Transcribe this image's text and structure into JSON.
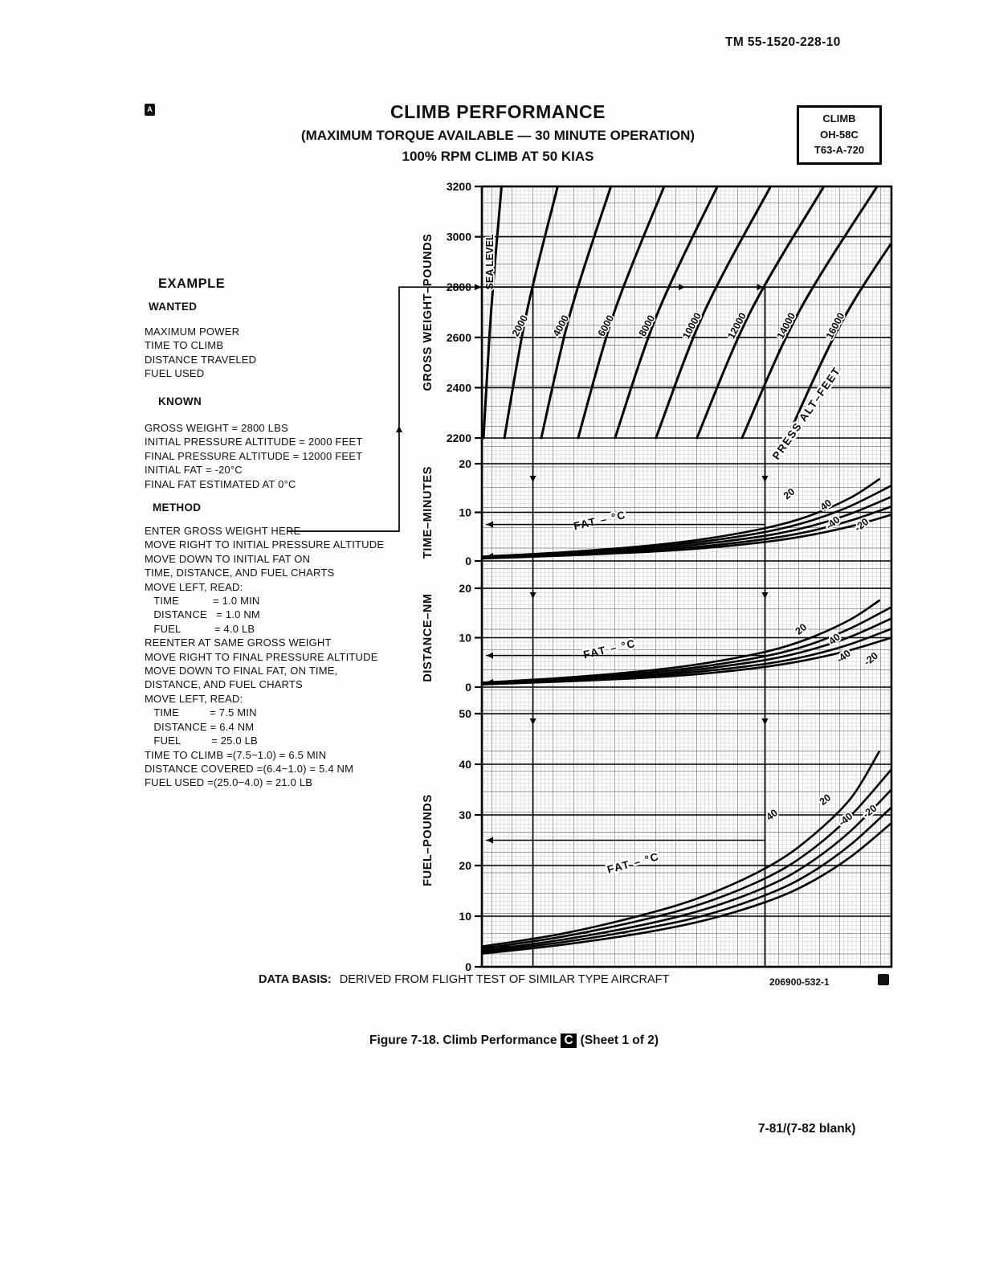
{
  "page": {
    "tm_number": "TM 55-1520-228-10",
    "title": "CLIMB PERFORMANCE",
    "subtitle1": "(MAXIMUM TORQUE AVAILABLE — 30 MINUTE OPERATION)",
    "subtitle2": "100% RPM CLIMB AT 50 KIAS",
    "info_box": [
      "CLIMB",
      "OH-58C",
      "T63-A-720"
    ],
    "data_basis_label": "DATA BASIS:",
    "data_basis_text": "DERIVED FROM FLIGHT TEST OF SIMILAR TYPE AIRCRAFT",
    "part_number": "206900-532-1",
    "figure_caption_pre": "Figure 7-18.  Climb Performance",
    "figure_caption_badge": "C",
    "figure_caption_post": "(Sheet 1 of 2)",
    "page_number": "7-81/(7-82 blank)"
  },
  "example": {
    "heading": "EXAMPLE",
    "wanted_heading": "WANTED",
    "wanted_items": [
      "MAXIMUM POWER",
      "TIME TO CLIMB",
      "DISTANCE TRAVELED",
      "FUEL USED"
    ],
    "known_heading": "KNOWN",
    "known_items": [
      "GROSS WEIGHT = 2800 LBS",
      "INITIAL PRESSURE ALTITUDE = 2000 FEET",
      "FINAL PRESSURE ALTITUDE = 12000 FEET",
      "INITIAL FAT = -20°C",
      "FINAL FAT ESTIMATED AT 0°C"
    ],
    "method_heading": "METHOD",
    "method_lines": [
      "ENTER GROSS WEIGHT HERE",
      "MOVE RIGHT TO INITIAL PRESSURE ALTITUDE",
      "MOVE DOWN TO INITIAL FAT ON",
      "TIME, DISTANCE, AND FUEL CHARTS",
      "MOVE LEFT, READ:",
      "   TIME           = 1.0 MIN",
      "   DISTANCE   = 1.0 NM",
      "   FUEL           = 4.0 LB",
      "REENTER AT SAME GROSS WEIGHT",
      "MOVE RIGHT TO FINAL PRESSURE ALTITUDE",
      "MOVE DOWN TO FINAL FAT, ON TIME,",
      "DISTANCE, AND FUEL CHARTS",
      "MOVE LEFT, READ:",
      "   TIME          = 7.5 MIN",
      "   DISTANCE = 6.4 NM",
      "   FUEL          = 25.0 LB",
      "TIME TO CLIMB =(7.5−1.0) = 6.5 MIN",
      "DISTANCE COVERED =(6.4−1.0) = 5.4 NM",
      "FUEL USED =(25.0−4.0) = 21.0 LB"
    ]
  },
  "chart_data": {
    "type": "line",
    "title": "CLIMB PERFORMANCE (MAXIMUM TORQUE AVAILABLE — 30 MINUTE OPERATION) 100% RPM CLIMB AT 50 KIAS",
    "x_axis": "shared unlabeled nomograph reference axis (x given as fraction 0–1 of chart width)",
    "grid": "fine graph-paper grid, on",
    "panels": [
      {
        "id": "gross_weight",
        "ylabel": "GROSS WEIGHT–POUNDS",
        "ylim": [
          2200,
          3200
        ],
        "yticks": [
          3200,
          3000,
          2800,
          2600,
          2400,
          2200
        ],
        "family_label": "PRESS ALT–FEET",
        "family_label_at": {
          "f": 0.8,
          "v": 2290,
          "rot": -55
        },
        "series": [
          {
            "name": "SEA LEVEL",
            "points": [
              [
                0.004,
                2200
              ],
              [
                0.0225,
                2700
              ],
              [
                0.048,
                3200
              ]
            ],
            "label_at": [
              0.027,
              2900,
              -90
            ]
          },
          {
            "name": "2000",
            "points": [
              [
                0.055,
                2200
              ],
              [
                0.1096,
                2700
              ],
              [
                0.185,
                3200
              ]
            ],
            "label_at": [
              0.1,
              2640,
              -62
            ]
          },
          {
            "name": "4000",
            "points": [
              [
                0.145,
                2200
              ],
              [
                0.2164,
                2700
              ],
              [
                0.315,
                3200
              ]
            ],
            "label_at": [
              0.2,
              2640,
              -62
            ]
          },
          {
            "name": "6000",
            "points": [
              [
                0.235,
                2200
              ],
              [
                0.3232,
                2700
              ],
              [
                0.445,
                3200
              ]
            ],
            "label_at": [
              0.31,
              2640,
              -62
            ]
          },
          {
            "name": "8000",
            "points": [
              [
                0.325,
                2200
              ],
              [
                0.43,
                2700
              ],
              [
                0.575,
                3200
              ]
            ],
            "label_at": [
              0.41,
              2640,
              -62
            ]
          },
          {
            "name": "10000",
            "points": [
              [
                0.425,
                2200
              ],
              [
                0.5426,
                2700
              ],
              [
                0.705,
                3200
              ]
            ],
            "label_at": [
              0.52,
              2640,
              -62
            ]
          },
          {
            "name": "12000",
            "points": [
              [
                0.525,
                2200
              ],
              [
                0.6552,
                2700
              ],
              [
                0.835,
                3200
              ]
            ],
            "label_at": [
              0.63,
              2640,
              -62
            ]
          },
          {
            "name": "14000",
            "points": [
              [
                0.635,
                2200
              ],
              [
                0.7736,
                2700
              ],
              [
                0.965,
                3200
              ]
            ],
            "label_at": [
              0.75,
              2640,
              -62
            ]
          },
          {
            "name": "16000",
            "points": [
              [
                0.745,
                2200
              ],
              [
                0.892,
                2700
              ],
              [
                1.095,
                3200
              ]
            ],
            "label_at": [
              0.87,
              2640,
              -62
            ]
          }
        ]
      },
      {
        "id": "time",
        "ylabel": "TIME–MINUTES",
        "ylim": [
          0,
          20
        ],
        "yticks": [
          20,
          10,
          0
        ],
        "family_label": "FAT – °C",
        "family_label_at": {
          "f": 0.29,
          "v": 7.6,
          "rot": -13
        },
        "curve_labels": [
          {
            "text": "20",
            "f": 0.755,
            "v": 13.3,
            "rot": -38
          },
          {
            "text": "40",
            "f": 0.845,
            "v": 11.0,
            "rot": -38
          },
          {
            "text": "-40",
            "f": 0.862,
            "v": 7.3,
            "rot": -38
          },
          {
            "text": "-20",
            "f": 0.932,
            "v": 6.9,
            "rot": -38
          }
        ],
        "series": [
          {
            "name": "40",
            "points": [
              [
                0,
                0.9
              ],
              [
                0.2,
                1.8
              ],
              [
                0.4,
                3.1
              ],
              [
                0.55,
                4.6
              ],
              [
                0.7,
                6.9
              ],
              [
                0.8,
                9.3
              ],
              [
                0.9,
                13.0
              ],
              [
                0.97,
                16.8
              ]
            ]
          },
          {
            "name": "20",
            "points": [
              [
                0,
                0.8
              ],
              [
                0.2,
                1.6
              ],
              [
                0.4,
                2.8
              ],
              [
                0.55,
                4.1
              ],
              [
                0.7,
                6.1
              ],
              [
                0.8,
                8.2
              ],
              [
                0.9,
                11.3
              ],
              [
                1.0,
                15.5
              ]
            ]
          },
          {
            "name": "0",
            "points": [
              [
                0,
                0.7
              ],
              [
                0.2,
                1.4
              ],
              [
                0.4,
                2.4
              ],
              [
                0.55,
                3.6
              ],
              [
                0.7,
                5.3
              ],
              [
                0.8,
                7.1
              ],
              [
                0.9,
                9.7
              ],
              [
                1.0,
                13.2
              ]
            ]
          },
          {
            "name": "-20",
            "points": [
              [
                0,
                0.6
              ],
              [
                0.2,
                1.25
              ],
              [
                0.4,
                2.1
              ],
              [
                0.55,
                3.1
              ],
              [
                0.7,
                4.6
              ],
              [
                0.8,
                6.1
              ],
              [
                0.9,
                8.3
              ],
              [
                1.0,
                11.2
              ]
            ]
          },
          {
            "name": "-40",
            "points": [
              [
                0,
                0.5
              ],
              [
                0.2,
                1.1
              ],
              [
                0.4,
                1.85
              ],
              [
                0.55,
                2.7
              ],
              [
                0.7,
                4.0
              ],
              [
                0.8,
                5.3
              ],
              [
                0.9,
                7.1
              ],
              [
                1.0,
                9.5
              ]
            ]
          }
        ]
      },
      {
        "id": "distance",
        "ylabel": "DISTANCE–NM",
        "ylim": [
          0,
          20
        ],
        "yticks": [
          20,
          10,
          0
        ],
        "family_label": "FAT – °C",
        "family_label_at": {
          "f": 0.314,
          "v": 7.0,
          "rot": -13
        },
        "curve_labels": [
          {
            "text": "20",
            "f": 0.784,
            "v": 11.2,
            "rot": -38
          },
          {
            "text": "40",
            "f": 0.866,
            "v": 9.2,
            "rot": -38
          },
          {
            "text": "-40",
            "f": 0.888,
            "v": 5.7,
            "rot": -38
          },
          {
            "text": "-20",
            "f": 0.955,
            "v": 5.2,
            "rot": -38
          }
        ],
        "series": [
          {
            "name": "40",
            "points": [
              [
                0,
                0.9
              ],
              [
                0.2,
                1.9
              ],
              [
                0.4,
                3.3
              ],
              [
                0.55,
                4.9
              ],
              [
                0.7,
                7.3
              ],
              [
                0.8,
                9.9
              ],
              [
                0.9,
                13.7
              ],
              [
                0.97,
                17.5
              ]
            ]
          },
          {
            "name": "20",
            "points": [
              [
                0,
                0.8
              ],
              [
                0.2,
                1.7
              ],
              [
                0.4,
                2.9
              ],
              [
                0.55,
                4.3
              ],
              [
                0.7,
                6.4
              ],
              [
                0.8,
                8.6
              ],
              [
                0.9,
                11.9
              ],
              [
                1.0,
                16.2
              ]
            ]
          },
          {
            "name": "0",
            "points": [
              [
                0,
                0.7
              ],
              [
                0.2,
                1.5
              ],
              [
                0.4,
                2.5
              ],
              [
                0.55,
                3.8
              ],
              [
                0.7,
                5.6
              ],
              [
                0.8,
                7.5
              ],
              [
                0.9,
                10.2
              ],
              [
                1.0,
                13.9
              ]
            ]
          },
          {
            "name": "-20",
            "points": [
              [
                0,
                0.6
              ],
              [
                0.2,
                1.3
              ],
              [
                0.4,
                2.2
              ],
              [
                0.55,
                3.3
              ],
              [
                0.7,
                4.8
              ],
              [
                0.8,
                6.4
              ],
              [
                0.9,
                8.7
              ],
              [
                1.0,
                11.8
              ]
            ]
          },
          {
            "name": "-40",
            "points": [
              [
                0,
                0.55
              ],
              [
                0.2,
                1.15
              ],
              [
                0.4,
                1.9
              ],
              [
                0.55,
                2.8
              ],
              [
                0.7,
                4.2
              ],
              [
                0.8,
                5.6
              ],
              [
                0.9,
                7.5
              ],
              [
                1.0,
                10.0
              ]
            ]
          }
        ]
      },
      {
        "id": "fuel",
        "ylabel": "FUEL–POUNDS",
        "ylim": [
          0,
          50
        ],
        "yticks": [
          50,
          40,
          30,
          20,
          10,
          0
        ],
        "family_label": "FAT – °C",
        "family_label_at": {
          "f": 0.372,
          "v": 19.8,
          "rot": -15
        },
        "curve_labels": [
          {
            "text": "40",
            "f": 0.713,
            "v": 29.5,
            "rot": -38
          },
          {
            "text": "20",
            "f": 0.843,
            "v": 32.5,
            "rot": -38
          },
          {
            "text": "-40",
            "f": 0.893,
            "v": 28.6,
            "rot": -38
          },
          {
            "text": "-20",
            "f": 0.952,
            "v": 30.2,
            "rot": -38
          }
        ],
        "series": [
          {
            "name": "40",
            "points": [
              [
                0,
                4.0
              ],
              [
                0.2,
                6.6
              ],
              [
                0.4,
                10.4
              ],
              [
                0.55,
                14.2
              ],
              [
                0.7,
                19.8
              ],
              [
                0.8,
                25.4
              ],
              [
                0.9,
                33.2
              ],
              [
                0.97,
                42.5
              ]
            ]
          },
          {
            "name": "20",
            "points": [
              [
                0,
                3.6
              ],
              [
                0.2,
                6.0
              ],
              [
                0.4,
                9.4
              ],
              [
                0.55,
                12.8
              ],
              [
                0.7,
                17.8
              ],
              [
                0.8,
                22.8
              ],
              [
                0.9,
                29.8
              ],
              [
                1.0,
                39.0
              ]
            ]
          },
          {
            "name": "0",
            "points": [
              [
                0,
                3.2
              ],
              [
                0.2,
                5.4
              ],
              [
                0.4,
                8.4
              ],
              [
                0.55,
                11.5
              ],
              [
                0.7,
                16.0
              ],
              [
                0.8,
                20.5
              ],
              [
                0.9,
                26.8
              ],
              [
                1.0,
                35.0
              ]
            ]
          },
          {
            "name": "-20",
            "points": [
              [
                0,
                2.9
              ],
              [
                0.2,
                4.9
              ],
              [
                0.4,
                7.6
              ],
              [
                0.55,
                10.3
              ],
              [
                0.7,
                14.4
              ],
              [
                0.8,
                18.4
              ],
              [
                0.9,
                24.1
              ],
              [
                1.0,
                31.5
              ]
            ]
          },
          {
            "name": "-40",
            "points": [
              [
                0,
                2.6
              ],
              [
                0.2,
                4.4
              ],
              [
                0.4,
                6.8
              ],
              [
                0.55,
                9.3
              ],
              [
                0.7,
                13.0
              ],
              [
                0.8,
                16.6
              ],
              [
                0.9,
                21.7
              ],
              [
                1.0,
                28.4
              ]
            ]
          }
        ]
      }
    ],
    "example_overlay": {
      "gross_weight": 2800,
      "initial_alt": "2000",
      "final_alt": "12000",
      "reads": {
        "time": [
          1.0,
          7.5
        ],
        "distance": [
          1.0,
          6.4
        ],
        "fuel": [
          4.0,
          25.0
        ]
      }
    }
  }
}
